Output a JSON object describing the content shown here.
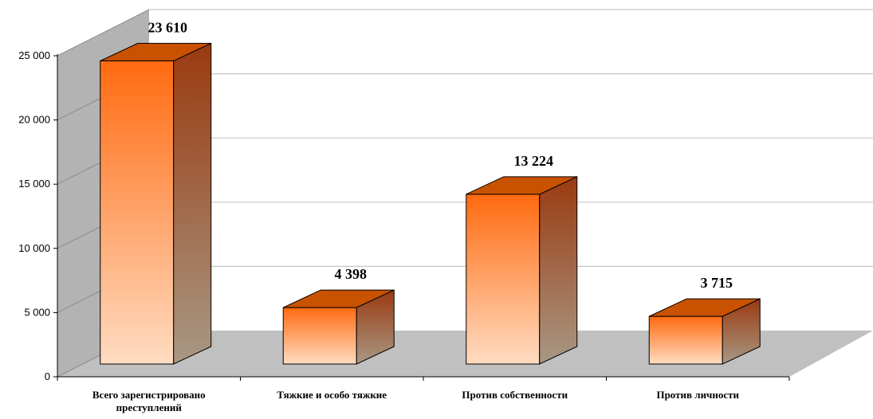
{
  "chart_data": {
    "type": "bar",
    "categories": [
      [
        "Всего зарегистрировано",
        "преступлений"
      ],
      [
        "Тяжкие и особо тяжкие"
      ],
      [
        "Против собственности"
      ],
      [
        "Против личности"
      ]
    ],
    "values": [
      23610,
      4398,
      13224,
      3715
    ],
    "data_labels": [
      "23 610",
      "4 398",
      "13 224",
      "3 715"
    ],
    "ylim": [
      0,
      25000
    ],
    "yticks": [
      {
        "value": 0,
        "label": "0"
      },
      {
        "value": 5000,
        "label": "5 000"
      },
      {
        "value": 10000,
        "label": "10 000"
      },
      {
        "value": 15000,
        "label": "15 000"
      },
      {
        "value": 20000,
        "label": "20 000"
      },
      {
        "value": 25000,
        "label": "25 000"
      }
    ],
    "grid": true,
    "style": "3d-column",
    "colors": {
      "bar_front_top": "#ff6a10",
      "bar_front_bottom": "#ffdcc2",
      "bar_side_top": "#9a3a10",
      "bar_side_bottom": "#a89884",
      "bar_top": "#c85200",
      "wall": "#b3b3b3",
      "floor": "#c0c0c0",
      "gridline": "#c8c8c8"
    }
  }
}
